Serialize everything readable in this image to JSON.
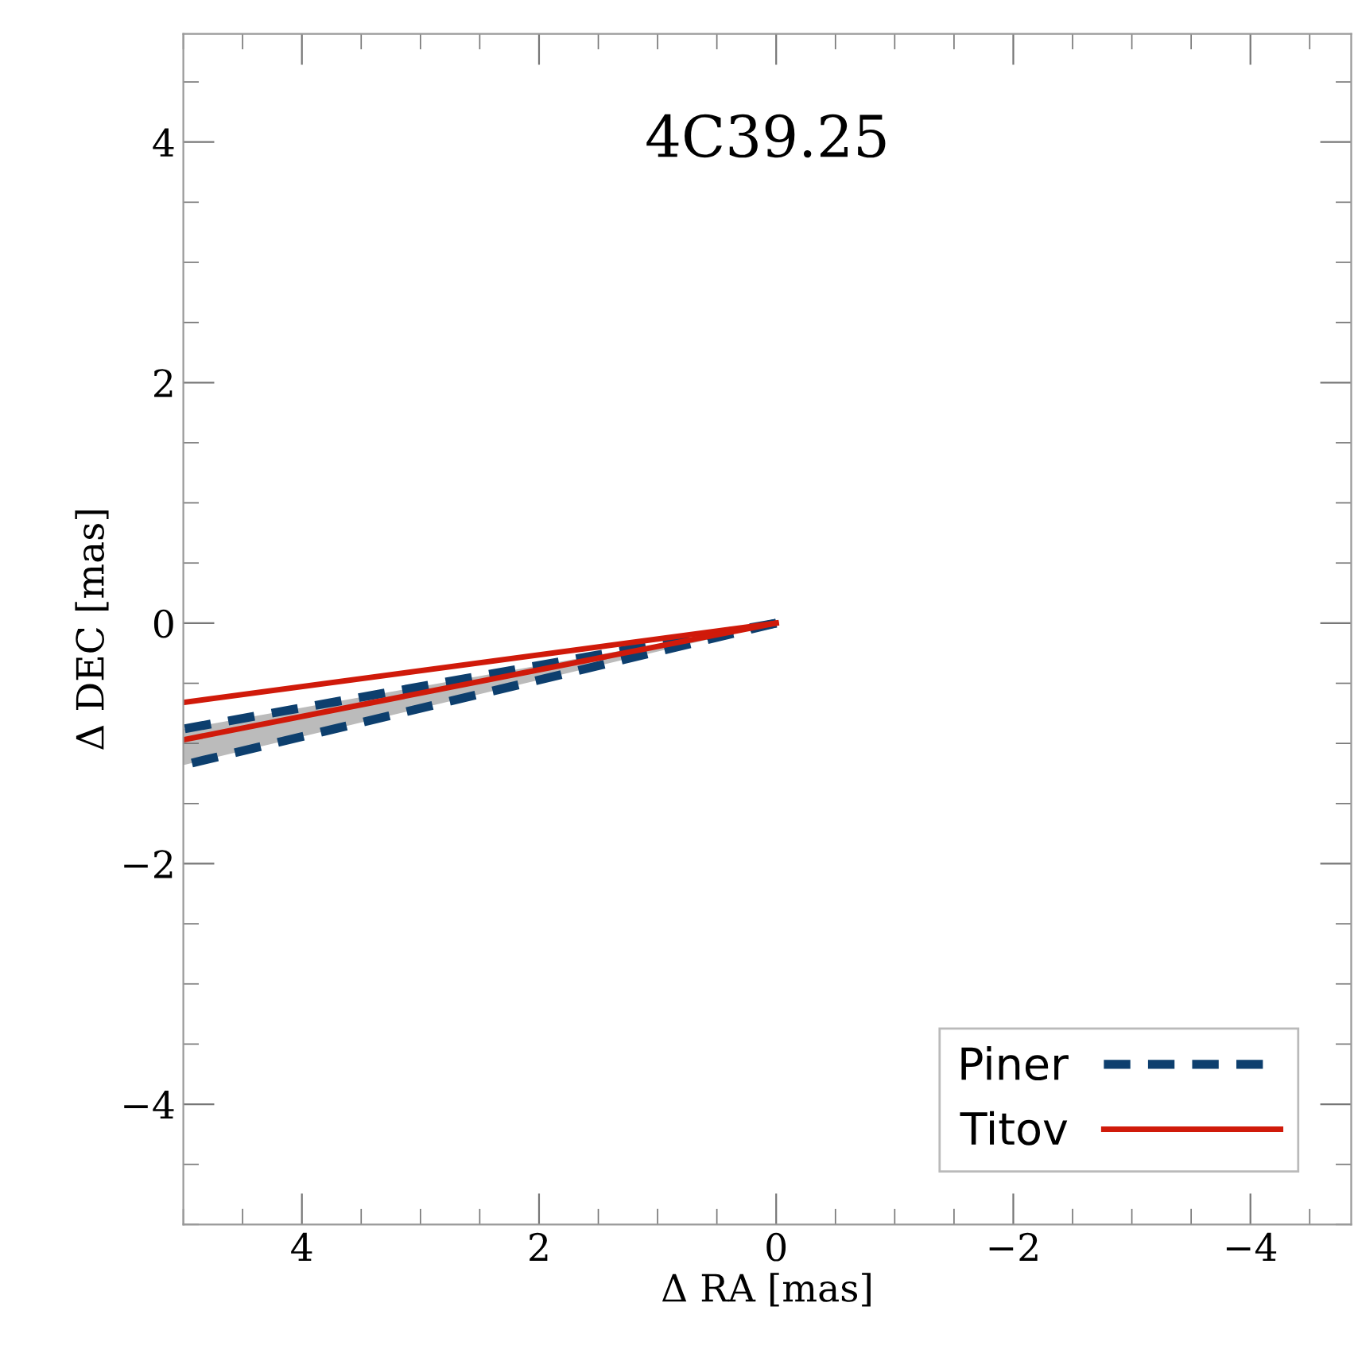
{
  "chart_data": {
    "type": "line",
    "title": "4C39.25",
    "xlabel": "Δ RA [mas]",
    "ylabel": "Δ DEC [mas]",
    "xlim": [
      5,
      -4.85
    ],
    "ylim": [
      -5,
      4.9
    ],
    "xticks": [
      4,
      2,
      0,
      {
        "value": -2,
        "label": "−2"
      },
      {
        "value": -4,
        "label": "−4"
      }
    ],
    "yticks": [
      {
        "value": -4,
        "label": "−4"
      },
      {
        "value": -2,
        "label": "−2"
      },
      0,
      2,
      4
    ],
    "x": [
      0,
      5
    ],
    "series": [
      {
        "name": "Piner",
        "color": "#0d3f6e",
        "line_style": "dashed",
        "values": [
          0,
          -0.88
        ],
        "lower": [
          0,
          -1.18
        ],
        "upper": [
          0,
          -0.88
        ]
      },
      {
        "color": "#0d3f6e",
        "line_style": "dashed",
        "values": [
          0,
          -1.18
        ]
      },
      {
        "name": "Titov",
        "color": "#d01a0a",
        "line_style": "solid",
        "values": [
          0,
          -0.66
        ]
      },
      {
        "color": "#d01a0a",
        "line_style": "solid",
        "values": [
          0,
          -0.97
        ]
      }
    ],
    "legend": "bottom right",
    "grid": false
  }
}
